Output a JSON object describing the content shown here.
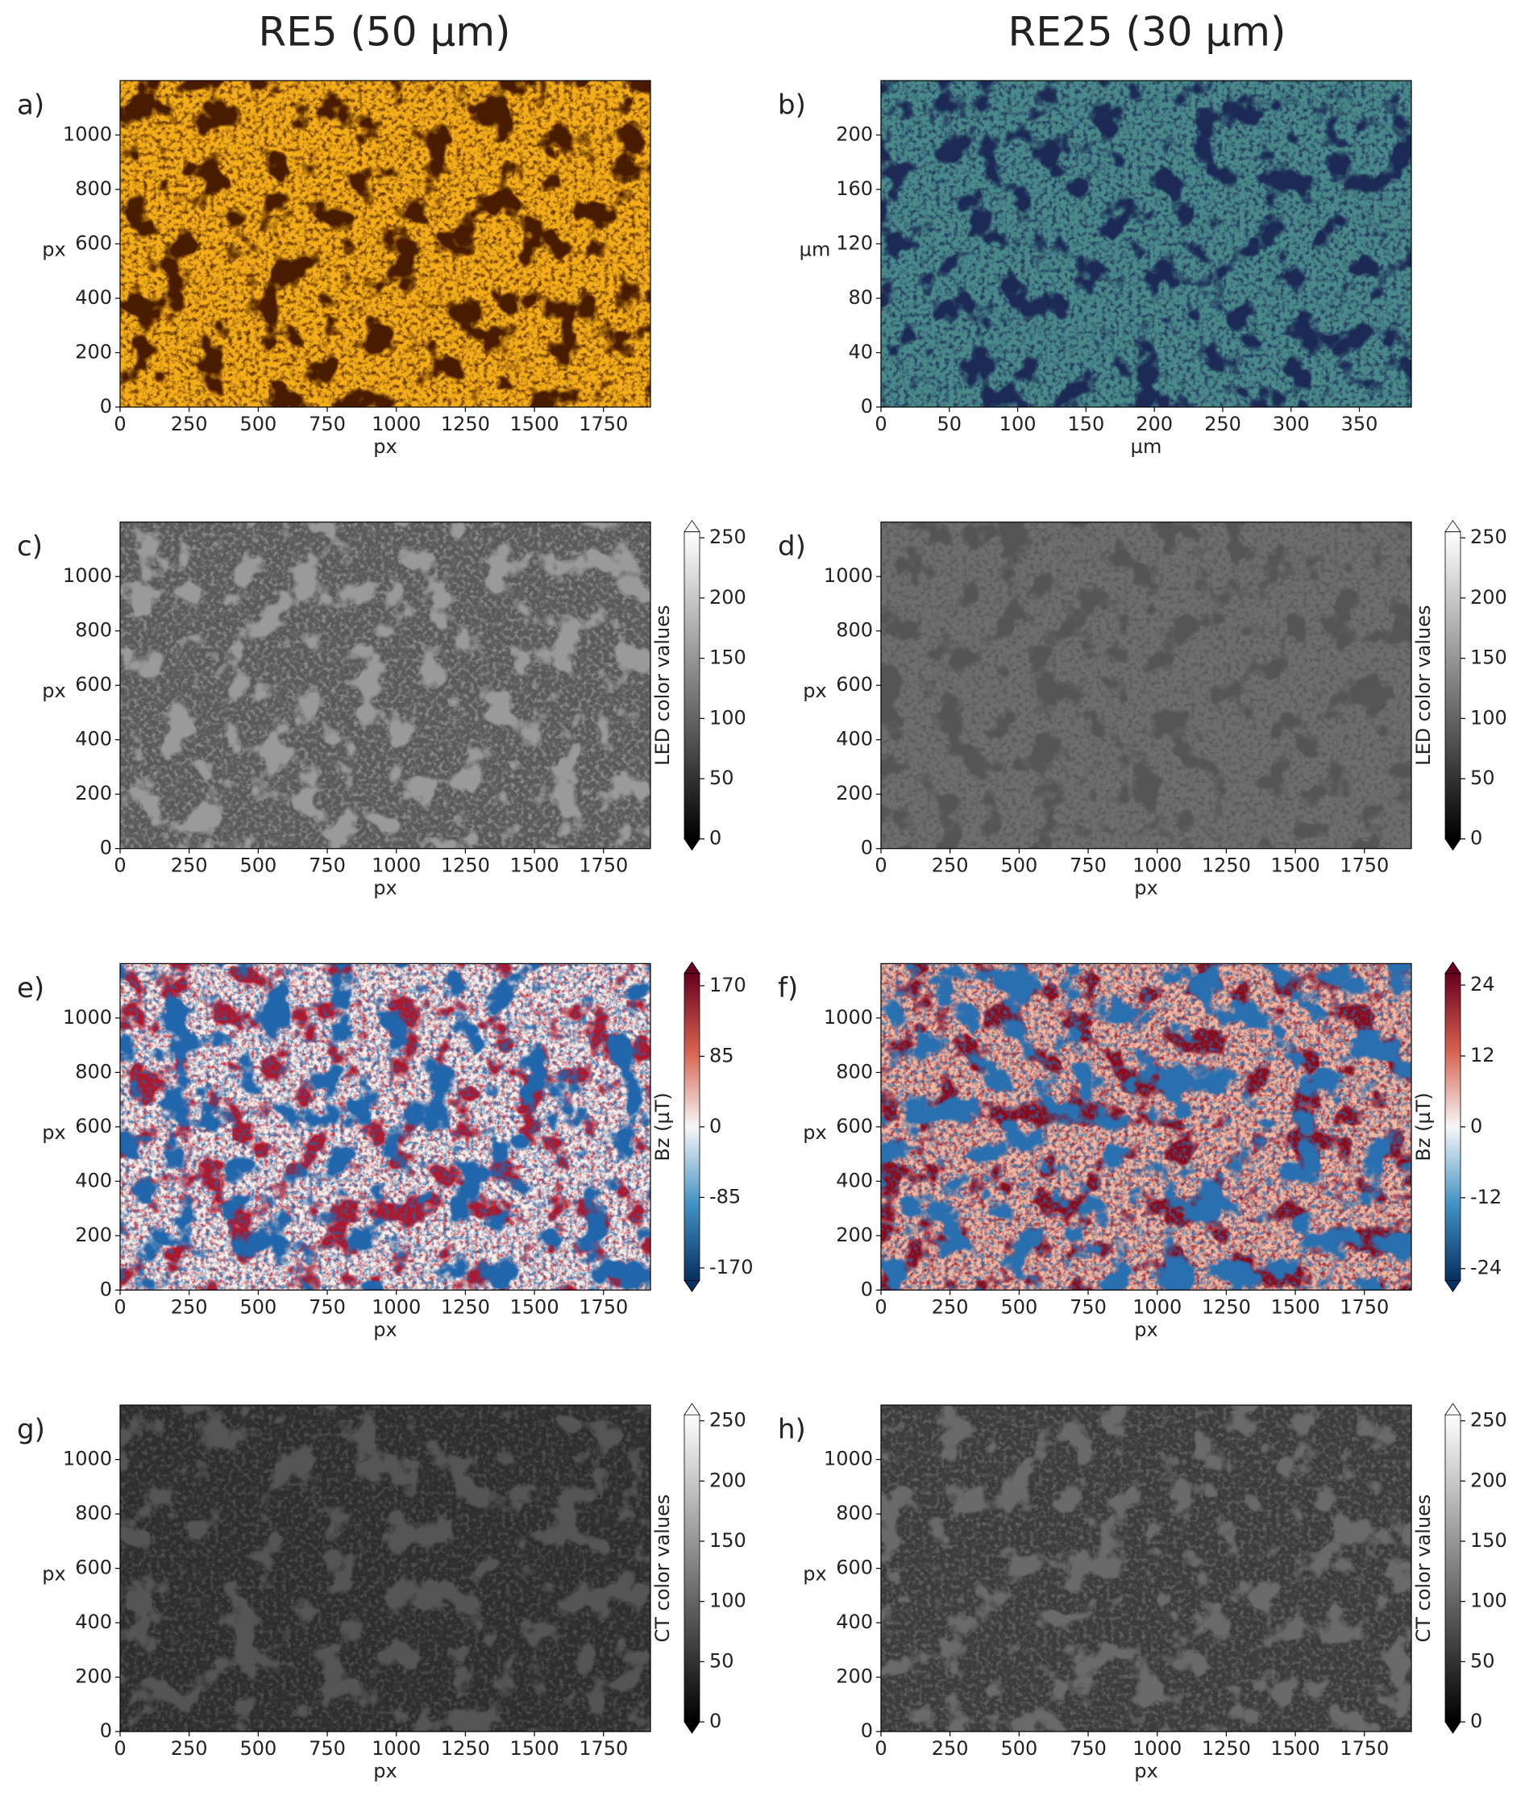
{
  "column_titles": [
    "RE5 (50 µm)",
    "RE25 (30 µm)"
  ],
  "chart_data": [
    {
      "type": "image",
      "panel_label": "a)",
      "xlabel": "px",
      "ylabel": "px",
      "xlim": [
        0,
        1920
      ],
      "ylim": [
        0,
        1200
      ],
      "xticks": [
        0,
        250,
        500,
        750,
        1000,
        1250,
        1500,
        1750
      ],
      "yticks": [
        0,
        200,
        400,
        600,
        800,
        1000
      ],
      "image_colors": [
        "#f4ae1a",
        "#4a1e06"
      ]
    },
    {
      "type": "image",
      "panel_label": "b)",
      "xlabel": "µm",
      "ylabel": "µm",
      "xlim": [
        0,
        388
      ],
      "ylim": [
        0,
        240
      ],
      "xticks": [
        0,
        50,
        100,
        150,
        200,
        250,
        300,
        350
      ],
      "yticks": [
        0,
        40,
        80,
        120,
        160,
        200
      ],
      "image_colors": [
        "#4a8a8a",
        "#1c2a55"
      ]
    },
    {
      "type": "image",
      "panel_label": "c)",
      "xlabel": "px",
      "ylabel": "px",
      "xlim": [
        0,
        1920
      ],
      "ylim": [
        0,
        1200
      ],
      "xticks": [
        0,
        250,
        500,
        750,
        1000,
        1250,
        1500,
        1750
      ],
      "yticks": [
        0,
        200,
        400,
        600,
        800,
        1000
      ],
      "image_colors": [
        "#5a5a5a",
        "#9a9a9a"
      ],
      "colorbar": {
        "label": "LED color values",
        "clim": [
          0,
          255
        ],
        "ticks": [
          0,
          50,
          100,
          150,
          200,
          250
        ],
        "cmap": [
          "#000000",
          "#ffffff"
        ]
      }
    },
    {
      "type": "image",
      "panel_label": "d)",
      "xlabel": "px",
      "ylabel": "px",
      "xlim": [
        0,
        1920
      ],
      "ylim": [
        0,
        1200
      ],
      "xticks": [
        0,
        250,
        500,
        750,
        1000,
        1250,
        1500,
        1750
      ],
      "yticks": [
        0,
        200,
        400,
        600,
        800,
        1000
      ],
      "image_colors": [
        "#6e6e6e",
        "#555555"
      ],
      "colorbar": {
        "label": "LED color values",
        "clim": [
          0,
          255
        ],
        "ticks": [
          0,
          50,
          100,
          150,
          200,
          250
        ],
        "cmap": [
          "#000000",
          "#ffffff"
        ]
      }
    },
    {
      "type": "image",
      "panel_label": "e)",
      "xlabel": "px",
      "ylabel": "px",
      "xlim": [
        0,
        1920
      ],
      "ylim": [
        0,
        1200
      ],
      "xticks": [
        0,
        250,
        500,
        750,
        1000,
        1250,
        1500,
        1750
      ],
      "yticks": [
        0,
        200,
        400,
        600,
        800,
        1000
      ],
      "image_colors": [
        "#f8eee8",
        "#b2182b",
        "#2166ac"
      ],
      "colorbar": {
        "label": "Bz (µT)",
        "clim": [
          -185,
          185
        ],
        "ticks": [
          -170,
          -85,
          0,
          85,
          170
        ],
        "cmap": [
          "#053061",
          "#4393c3",
          "#f7f7f7",
          "#d6604d",
          "#67001f"
        ]
      }
    },
    {
      "type": "image",
      "panel_label": "f)",
      "xlabel": "px",
      "ylabel": "px",
      "xlim": [
        0,
        1920
      ],
      "ylim": [
        0,
        1200
      ],
      "xticks": [
        0,
        250,
        500,
        750,
        1000,
        1250,
        1500,
        1750
      ],
      "yticks": [
        0,
        200,
        400,
        600,
        800,
        1000
      ],
      "image_colors": [
        "#f4b8a0",
        "#8b0a1f",
        "#2a6fb0"
      ],
      "colorbar": {
        "label": "Bz (µT)",
        "clim": [
          -26,
          26
        ],
        "ticks": [
          -24,
          -12,
          0,
          12,
          24
        ],
        "cmap": [
          "#053061",
          "#4393c3",
          "#f7f7f7",
          "#d6604d",
          "#67001f"
        ]
      }
    },
    {
      "type": "image",
      "panel_label": "g)",
      "xlabel": "px",
      "ylabel": "px",
      "xlim": [
        0,
        1920
      ],
      "ylim": [
        0,
        1200
      ],
      "xticks": [
        0,
        250,
        500,
        750,
        1000,
        1250,
        1500,
        1750
      ],
      "yticks": [
        0,
        200,
        400,
        600,
        800,
        1000
      ],
      "image_colors": [
        "#2e2e2e",
        "#555555"
      ],
      "colorbar": {
        "label": "CT color values",
        "clim": [
          0,
          255
        ],
        "ticks": [
          0,
          50,
          100,
          150,
          200,
          250
        ],
        "cmap": [
          "#000000",
          "#ffffff"
        ]
      }
    },
    {
      "type": "image",
      "panel_label": "h)",
      "xlabel": "px",
      "ylabel": "px",
      "xlim": [
        0,
        1920
      ],
      "ylim": [
        0,
        1200
      ],
      "xticks": [
        0,
        250,
        500,
        750,
        1000,
        1250,
        1500,
        1750
      ],
      "yticks": [
        0,
        200,
        400,
        600,
        800,
        1000
      ],
      "image_colors": [
        "#3c3c3c",
        "#6a6a6a"
      ],
      "colorbar": {
        "label": "CT color values",
        "clim": [
          0,
          255
        ],
        "ticks": [
          0,
          50,
          100,
          150,
          200,
          250
        ],
        "cmap": [
          "#000000",
          "#ffffff"
        ]
      }
    }
  ]
}
